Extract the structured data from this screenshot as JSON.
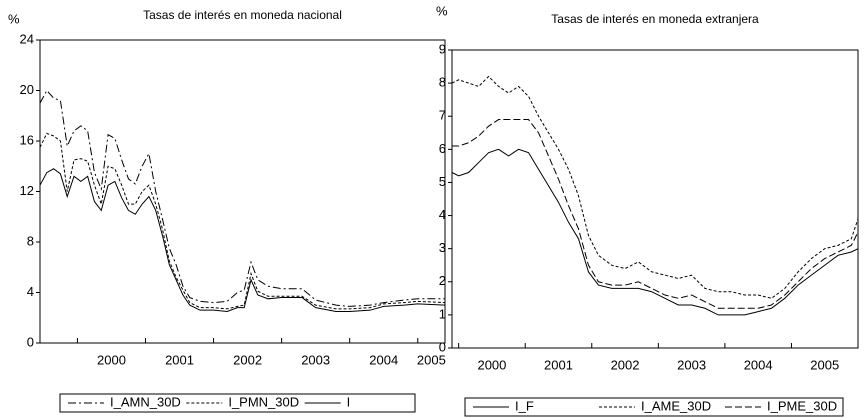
{
  "chart_data": [
    {
      "type": "line",
      "title": "Tasas de interés en moneda nacional",
      "ylabel": "%",
      "x": [
        1999.45,
        1999.55,
        1999.65,
        1999.75,
        1999.85,
        1999.95,
        2000.05,
        2000.15,
        2000.25,
        2000.35,
        2000.45,
        2000.55,
        2000.65,
        2000.75,
        2000.85,
        2000.95,
        2001.05,
        2001.15,
        2001.25,
        2001.35,
        2001.45,
        2001.55,
        2001.65,
        2001.8,
        2002.0,
        2002.2,
        2002.35,
        2002.45,
        2002.55,
        2002.65,
        2002.8,
        2003.0,
        2003.3,
        2003.5,
        2003.8,
        2004.0,
        2004.3,
        2004.5,
        2004.8,
        2005.0,
        2005.4
      ],
      "xlim": [
        1999.45,
        2005.4
      ],
      "xticks": [
        2000,
        2001,
        2002,
        2003,
        2004,
        2005
      ],
      "ylim": [
        0,
        24
      ],
      "yticks": [
        0,
        4,
        8,
        12,
        16,
        20,
        24
      ],
      "series": [
        {
          "name": "I_AMN_30D",
          "color": "#000000",
          "dash": "dashdot",
          "values": [
            19.0,
            20.0,
            19.4,
            19.2,
            15.6,
            16.8,
            17.2,
            16.8,
            13.5,
            12.2,
            16.5,
            16.2,
            14.5,
            13.0,
            12.6,
            14.0,
            15.0,
            12.0,
            9.8,
            7.5,
            6.2,
            4.5,
            3.6,
            3.3,
            3.2,
            3.3,
            4.0,
            4.2,
            6.4,
            5.0,
            4.5,
            4.3,
            4.3,
            3.4,
            3.0,
            2.9,
            3.0,
            3.2,
            3.4,
            3.5,
            3.5
          ]
        },
        {
          "name": "I_PMN_30D",
          "color": "#000000",
          "dash": "dash",
          "values": [
            15.5,
            16.6,
            16.4,
            16.0,
            12.0,
            14.5,
            14.6,
            14.4,
            12.5,
            11.0,
            14.0,
            13.8,
            12.5,
            11.0,
            11.0,
            12.0,
            12.5,
            11.0,
            9.0,
            6.5,
            5.2,
            4.2,
            3.2,
            2.8,
            2.8,
            2.7,
            2.9,
            3.0,
            5.5,
            4.1,
            3.7,
            3.7,
            3.7,
            3.0,
            2.7,
            2.7,
            2.8,
            3.1,
            3.2,
            3.3,
            3.2
          ]
        },
        {
          "name": "I",
          "color": "#000000",
          "dash": "solid",
          "values": [
            12.5,
            13.5,
            13.8,
            13.4,
            11.6,
            13.2,
            12.8,
            13.2,
            11.2,
            10.5,
            12.5,
            12.8,
            11.5,
            10.5,
            10.2,
            11.0,
            11.6,
            10.5,
            8.5,
            6.2,
            5.0,
            3.8,
            3.0,
            2.6,
            2.6,
            2.5,
            2.8,
            2.8,
            5.0,
            3.8,
            3.5,
            3.6,
            3.6,
            2.8,
            2.5,
            2.5,
            2.6,
            2.9,
            3.0,
            3.1,
            3.0
          ]
        }
      ]
    },
    {
      "type": "line",
      "title": "Tasas de interés en moneda extranjera",
      "ylabel": "%",
      "x": [
        1999.9,
        2000.0,
        2000.15,
        2000.3,
        2000.45,
        2000.6,
        2000.75,
        2000.9,
        2001.05,
        2001.2,
        2001.35,
        2001.5,
        2001.65,
        2001.8,
        2001.95,
        2002.1,
        2002.3,
        2002.5,
        2002.7,
        2002.9,
        2003.1,
        2003.3,
        2003.5,
        2003.7,
        2003.9,
        2004.1,
        2004.3,
        2004.5,
        2004.7,
        2004.9,
        2005.1,
        2005.3,
        2005.5,
        2005.7,
        2005.9,
        2006.0
      ],
      "xlim": [
        1999.9,
        2006.0
      ],
      "xticks": [
        2000,
        2001,
        2002,
        2003,
        2004,
        2005
      ],
      "ylim": [
        0,
        9
      ],
      "yticks": [
        0,
        1,
        2,
        3,
        4,
        5,
        6,
        7,
        8,
        9
      ],
      "series": [
        {
          "name": "I_F",
          "color": "#000000",
          "dash": "solid",
          "values": [
            5.3,
            5.2,
            5.3,
            5.6,
            5.9,
            6.0,
            5.8,
            6.0,
            5.9,
            5.4,
            4.9,
            4.4,
            3.8,
            3.3,
            2.3,
            1.9,
            1.8,
            1.8,
            1.8,
            1.7,
            1.5,
            1.3,
            1.3,
            1.2,
            1.0,
            1.0,
            1.0,
            1.1,
            1.2,
            1.5,
            1.9,
            2.2,
            2.5,
            2.8,
            2.9,
            3.0
          ]
        },
        {
          "name": "I_AME_30D",
          "color": "#000000",
          "dash": "dash",
          "values": [
            8.0,
            8.1,
            8.0,
            7.9,
            8.2,
            7.9,
            7.7,
            7.9,
            7.6,
            7.0,
            6.5,
            6.0,
            5.4,
            4.6,
            3.4,
            2.8,
            2.5,
            2.4,
            2.6,
            2.3,
            2.2,
            2.1,
            2.2,
            1.8,
            1.7,
            1.7,
            1.6,
            1.6,
            1.5,
            1.8,
            2.3,
            2.7,
            3.0,
            3.1,
            3.3,
            3.9
          ]
        },
        {
          "name": "I_PME_30D",
          "color": "#000000",
          "dash": "longdash",
          "values": [
            6.1,
            6.1,
            6.2,
            6.4,
            6.7,
            6.9,
            6.9,
            6.9,
            6.9,
            6.5,
            5.8,
            5.1,
            4.3,
            3.6,
            2.5,
            2.0,
            1.9,
            1.9,
            2.0,
            1.8,
            1.6,
            1.5,
            1.6,
            1.4,
            1.2,
            1.2,
            1.2,
            1.2,
            1.3,
            1.6,
            2.0,
            2.4,
            2.7,
            2.9,
            3.1,
            3.5
          ]
        }
      ]
    }
  ]
}
